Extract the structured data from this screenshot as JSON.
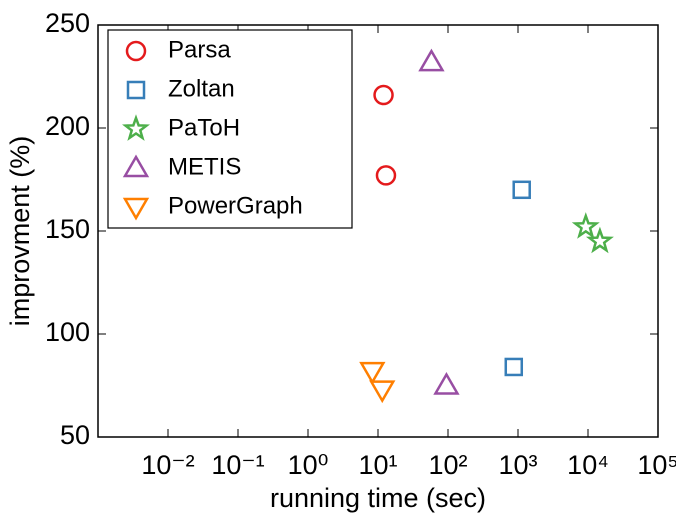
{
  "chart_data": {
    "type": "scatter",
    "xlabel": "running time (sec)",
    "ylabel": "improvment (%)",
    "xscale": "log",
    "xlim": [
      0.001,
      100000
    ],
    "ylim": [
      50,
      250
    ],
    "xticks": [
      {
        "value": 0.01,
        "label": "10⁻²"
      },
      {
        "value": 0.1,
        "label": "10⁻¹"
      },
      {
        "value": 1,
        "label": "10⁰"
      },
      {
        "value": 10,
        "label": "10¹"
      },
      {
        "value": 100,
        "label": "10²"
      },
      {
        "value": 1000,
        "label": "10³"
      },
      {
        "value": 10000,
        "label": "10⁴"
      },
      {
        "value": 100000,
        "label": "10⁵"
      }
    ],
    "yticks": [
      50,
      100,
      150,
      200,
      250
    ],
    "legend": "upper left",
    "series": [
      {
        "name": "Parsa",
        "color": "#e41a1c",
        "marker": "o",
        "x": [
          12,
          13
        ],
        "values": [
          216,
          177
        ]
      },
      {
        "name": "Zoltan",
        "color": "#377eb8",
        "marker": "s",
        "x": [
          1130,
          870
        ],
        "values": [
          170,
          84
        ]
      },
      {
        "name": "PaToH",
        "color": "#4daf4a",
        "marker": "*",
        "x": [
          9300,
          14800
        ],
        "values": [
          152,
          145
        ]
      },
      {
        "name": "METIS",
        "color": "#984ea3",
        "marker": "^",
        "x": [
          58,
          95
        ],
        "values": [
          232,
          75
        ]
      },
      {
        "name": "PowerGraph",
        "color": "#ff7f00",
        "marker": "v",
        "x": [
          8.3,
          11.5
        ],
        "values": [
          82,
          73
        ]
      }
    ]
  }
}
